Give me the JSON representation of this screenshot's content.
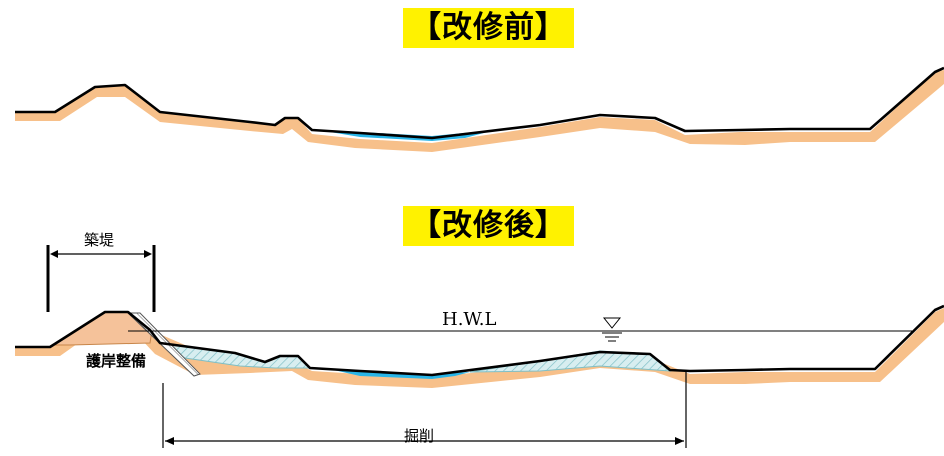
{
  "titles": {
    "before": "【改修前】",
    "after": "【改修後】"
  },
  "labels": {
    "levee": "築堤",
    "revetment": "護岸整備",
    "hwl": "H.W.L",
    "excavation": "掘削"
  },
  "symbols": {
    "water_level_mark": "water-level-triangle-icon"
  },
  "colors": {
    "title_highlight": "#fff200",
    "ground_soil": "#f7c08a",
    "water": "#29b5e8",
    "excavation_hatch": "#7fbfc6",
    "ground_line": "#000000"
  }
}
